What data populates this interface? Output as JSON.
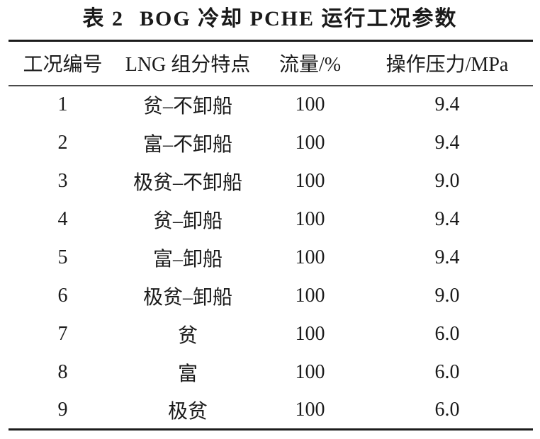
{
  "caption": {
    "label": "表 2",
    "title": "BOG 冷却 PCHE 运行工况参数"
  },
  "table": {
    "columns": [
      "工况编号",
      "LNG 组分特点",
      "流量/%",
      "操作压力/MPa"
    ],
    "rows": [
      [
        "1",
        "贫–不卸船",
        "100",
        "9.4"
      ],
      [
        "2",
        "富–不卸船",
        "100",
        "9.4"
      ],
      [
        "3",
        "极贫–不卸船",
        "100",
        "9.0"
      ],
      [
        "4",
        "贫–卸船",
        "100",
        "9.4"
      ],
      [
        "5",
        "富–卸船",
        "100",
        "9.4"
      ],
      [
        "6",
        "极贫–卸船",
        "100",
        "9.0"
      ],
      [
        "7",
        "贫",
        "100",
        "6.0"
      ],
      [
        "8",
        "富",
        "100",
        "6.0"
      ],
      [
        "9",
        "极贫",
        "100",
        "6.0"
      ]
    ]
  },
  "colors": {
    "text": "#1a1a1a",
    "rule_heavy": "#1c1c1c",
    "rule_light": "#4a4a4a",
    "background": "#ffffff"
  }
}
